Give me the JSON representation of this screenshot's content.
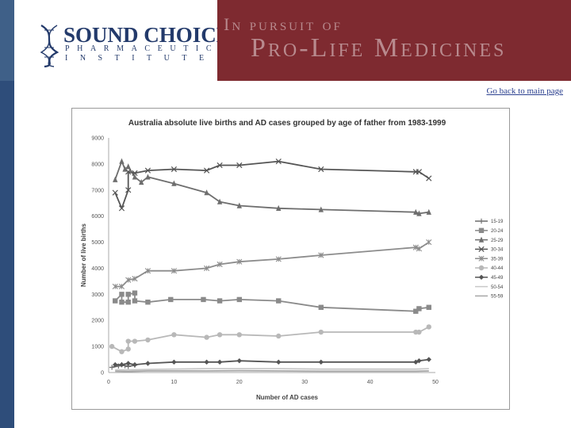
{
  "header": {
    "logo": {
      "name": "SOUND CHOICE",
      "line1": "PHARMACEUTICAL",
      "line2": "INSTITUTE"
    },
    "tagline_top": "In pursuit of",
    "tagline_main": "Pro-Life Medicines"
  },
  "nav": {
    "back_link": "Go back to main page"
  },
  "colors": {
    "brand_blue": "#233a6b",
    "banner_maroon": "#7e2a30",
    "banner_text": "#b88a8e",
    "side_bar": "#2e4d7a"
  },
  "chart_data": {
    "type": "line",
    "title": "Australia absolute live births and AD cases grouped by age of father from 1983-1999",
    "xlabel": "Number of AD cases",
    "ylabel": "Number of live births",
    "xlim": [
      0,
      50
    ],
    "ylim": [
      0,
      9000
    ],
    "xticks": [
      "0",
      "10",
      "20",
      "30",
      "40",
      "50"
    ],
    "yticks": [
      "0",
      "1000",
      "2000",
      "3000",
      "4000",
      "5000",
      "6000",
      "7000",
      "8000",
      "9000"
    ],
    "legend_position": "right",
    "series": [
      {
        "name": "15-19",
        "color": "#6a6a6a",
        "marker": "plus",
        "points": [
          [
            0.5,
            200
          ],
          [
            1.5,
            250
          ],
          [
            2,
            300
          ],
          [
            2.5,
            260
          ],
          [
            3,
            230
          ],
          [
            4,
            280
          ]
        ]
      },
      {
        "name": "20-24",
        "color": "#8a8a8a",
        "marker": "square",
        "points": [
          [
            1,
            2750
          ],
          [
            2,
            3000
          ],
          [
            2,
            2700
          ],
          [
            3,
            2700
          ],
          [
            3,
            3000
          ],
          [
            4,
            3050
          ],
          [
            4,
            2750
          ],
          [
            6,
            2700
          ],
          [
            9.5,
            2800
          ],
          [
            14.5,
            2800
          ],
          [
            17,
            2750
          ],
          [
            20,
            2800
          ],
          [
            26,
            2750
          ],
          [
            32.5,
            2500
          ],
          [
            47,
            2350
          ],
          [
            47.5,
            2450
          ],
          [
            49,
            2500
          ]
        ]
      },
      {
        "name": "25-29",
        "color": "#6e6e6e",
        "marker": "triangle",
        "points": [
          [
            1,
            7400
          ],
          [
            2,
            8100
          ],
          [
            2.5,
            7800
          ],
          [
            3,
            7900
          ],
          [
            4,
            7500
          ],
          [
            5,
            7300
          ],
          [
            6,
            7500
          ],
          [
            10,
            7250
          ],
          [
            15,
            6900
          ],
          [
            17,
            6550
          ],
          [
            20,
            6400
          ],
          [
            26,
            6300
          ],
          [
            32.5,
            6250
          ],
          [
            47,
            6150
          ],
          [
            47.5,
            6100
          ],
          [
            49,
            6150
          ]
        ]
      },
      {
        "name": "30-34",
        "color": "#555555",
        "marker": "cross",
        "points": [
          [
            1,
            6900
          ],
          [
            2,
            6300
          ],
          [
            3,
            7000
          ],
          [
            3,
            7700
          ],
          [
            4,
            7650
          ],
          [
            6,
            7750
          ],
          [
            10,
            7800
          ],
          [
            15,
            7750
          ],
          [
            17,
            7950
          ],
          [
            20,
            7950
          ],
          [
            26,
            8100
          ],
          [
            32.5,
            7800
          ],
          [
            47,
            7700
          ],
          [
            47.5,
            7700
          ],
          [
            49,
            7450
          ]
        ]
      },
      {
        "name": "35-39",
        "color": "#8c8c8c",
        "marker": "star",
        "points": [
          [
            1,
            3300
          ],
          [
            2,
            3300
          ],
          [
            3,
            3550
          ],
          [
            4,
            3600
          ],
          [
            6,
            3900
          ],
          [
            10,
            3900
          ],
          [
            15,
            4000
          ],
          [
            17,
            4150
          ],
          [
            20,
            4250
          ],
          [
            26,
            4350
          ],
          [
            32.5,
            4500
          ],
          [
            47,
            4800
          ],
          [
            47.5,
            4750
          ],
          [
            49,
            5000
          ]
        ]
      },
      {
        "name": "40-44",
        "color": "#b8b8b8",
        "marker": "circle",
        "points": [
          [
            0.5,
            1000
          ],
          [
            2,
            800
          ],
          [
            3,
            900
          ],
          [
            3,
            1200
          ],
          [
            4,
            1200
          ],
          [
            6,
            1250
          ],
          [
            10,
            1450
          ],
          [
            15,
            1350
          ],
          [
            17,
            1450
          ],
          [
            20,
            1450
          ],
          [
            26,
            1400
          ],
          [
            32.5,
            1550
          ],
          [
            47,
            1550
          ],
          [
            47.5,
            1550
          ],
          [
            49,
            1750
          ]
        ]
      },
      {
        "name": "45-49",
        "color": "#555555",
        "marker": "diamond",
        "points": [
          [
            1,
            300
          ],
          [
            2,
            300
          ],
          [
            3,
            350
          ],
          [
            4,
            300
          ],
          [
            6,
            350
          ],
          [
            10,
            400
          ],
          [
            15,
            400
          ],
          [
            17,
            400
          ],
          [
            20,
            450
          ],
          [
            26,
            400
          ],
          [
            32.5,
            400
          ],
          [
            47,
            400
          ],
          [
            47.5,
            450
          ],
          [
            49,
            500
          ]
        ]
      },
      {
        "name": "50-54",
        "color": "#c8c8c8",
        "marker": "line",
        "points": [
          [
            1,
            100
          ],
          [
            3,
            100
          ],
          [
            6,
            120
          ],
          [
            15,
            150
          ],
          [
            20,
            150
          ],
          [
            26,
            150
          ],
          [
            32.5,
            130
          ],
          [
            47,
            130
          ],
          [
            49,
            150
          ]
        ]
      },
      {
        "name": "55-59",
        "color": "#a6a6a6",
        "marker": "line",
        "points": [
          [
            1,
            50
          ],
          [
            3,
            40
          ],
          [
            6,
            60
          ],
          [
            15,
            60
          ],
          [
            20,
            70
          ],
          [
            26,
            60
          ],
          [
            32.5,
            50
          ],
          [
            47,
            50
          ],
          [
            49,
            60
          ]
        ]
      }
    ]
  }
}
